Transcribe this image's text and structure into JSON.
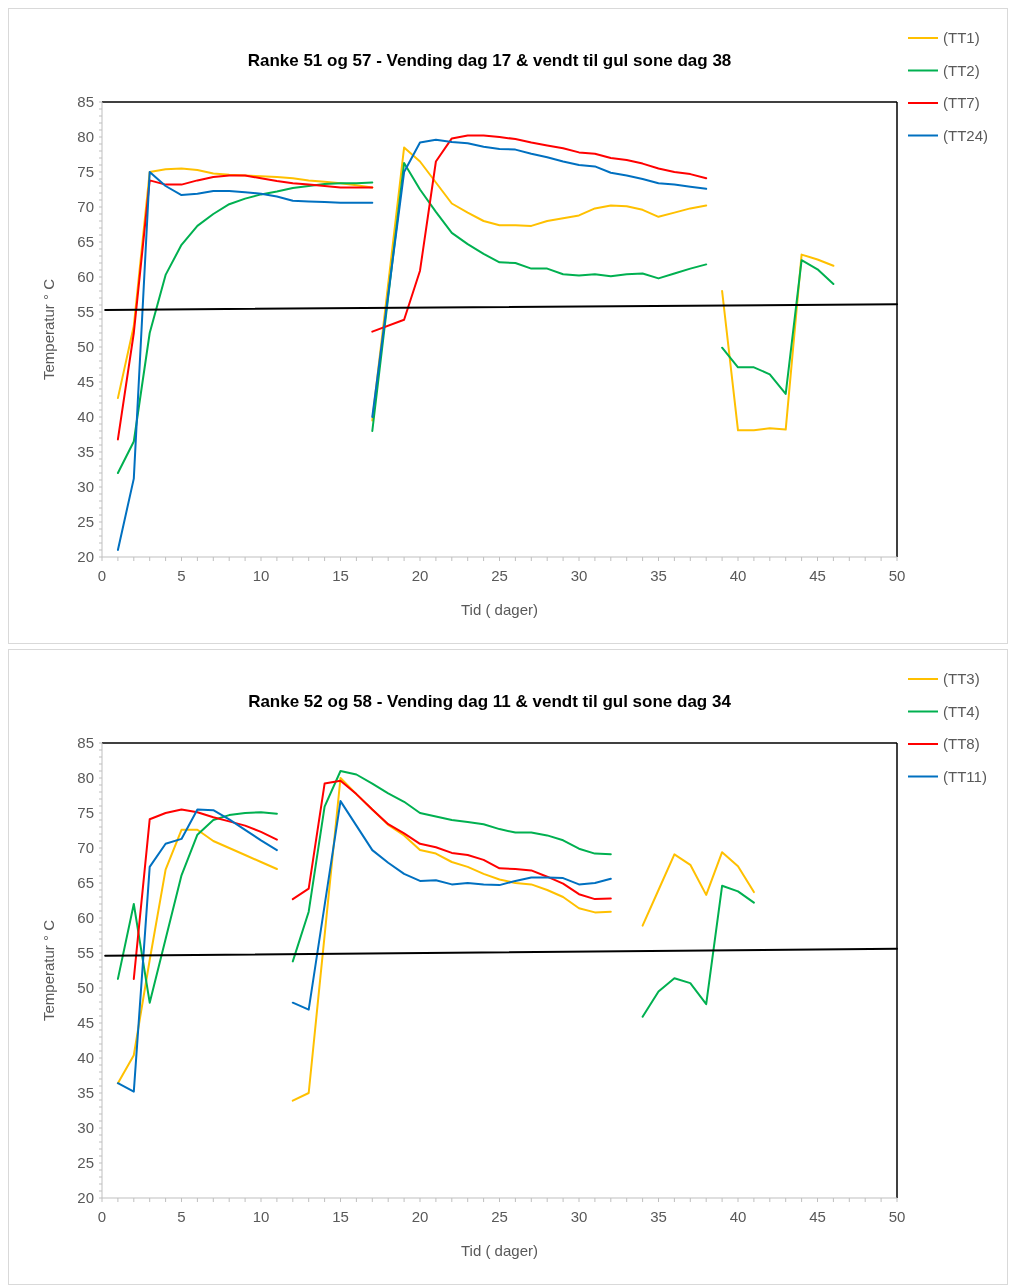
{
  "chart_data": [
    {
      "type": "line",
      "title": "Ranke 51 og 57  - Vending dag 17 & vendt til gul sone dag 38",
      "xlabel": "Tid ( dager)",
      "ylabel": "Temperatur ° C",
      "xlim": [
        0,
        50
      ],
      "xticks": [
        0,
        5,
        10,
        15,
        20,
        25,
        30,
        35,
        40,
        45,
        50
      ],
      "ylim": [
        20,
        85
      ],
      "yticks": [
        20,
        25,
        30,
        35,
        40,
        45,
        50,
        55,
        60,
        65,
        70,
        75,
        80,
        85
      ],
      "legend": "right",
      "series": [
        {
          "name": "(TT1)",
          "color": "#ffc000",
          "x": [
            1,
            2,
            3,
            4,
            5,
            6,
            7,
            8,
            9,
            10,
            11,
            12,
            13,
            14,
            15,
            16,
            17
          ],
          "values": [
            42.7,
            53,
            75,
            75.4,
            75.5,
            75.3,
            74.8,
            74.6,
            74.5,
            74.4,
            74.3,
            74.1,
            73.8,
            73.6,
            73.4,
            73.1,
            72.8
          ]
        },
        {
          "name": "(TT2)",
          "color": "#00b050",
          "x": [
            1,
            2,
            3,
            4,
            5,
            6,
            7,
            8,
            9,
            10,
            11,
            12,
            13,
            14,
            15,
            16,
            17
          ],
          "values": [
            32,
            36.5,
            52,
            60.3,
            64.6,
            67.3,
            69,
            70.4,
            71.2,
            71.8,
            72.2,
            72.7,
            73,
            73.3,
            73.4,
            73.4,
            73.5
          ]
        },
        {
          "name": "(TT7)",
          "color": "#ff0000",
          "x": [
            1,
            2,
            3,
            4,
            5,
            6,
            7,
            8,
            9,
            10,
            11,
            12,
            13,
            14,
            15,
            16,
            17
          ],
          "values": [
            36.8,
            52,
            73.8,
            73.2,
            73.2,
            73.8,
            74.3,
            74.5,
            74.5,
            74.1,
            73.7,
            73.4,
            73.2,
            73,
            72.8,
            72.8,
            72.8
          ]
        },
        {
          "name": "(TT24)",
          "color": "#0070c0",
          "x": [
            1,
            2,
            3,
            4,
            5,
            6,
            7,
            8,
            9,
            10,
            11,
            12,
            13,
            14,
            15,
            16,
            17
          ],
          "values": [
            21,
            31.2,
            75,
            73,
            71.7,
            71.9,
            72.3,
            72.3,
            72.1,
            71.9,
            71.5,
            70.9,
            70.8,
            70.7,
            70.6,
            70.6,
            70.6
          ]
        },
        {
          "color": "#ffc000",
          "x": [
            17,
            19,
            20,
            21,
            22,
            23,
            24,
            25,
            26,
            27,
            28,
            29,
            30,
            31,
            32,
            33,
            34,
            35,
            36,
            37,
            38
          ],
          "values": [
            39.5,
            78.5,
            76.5,
            73.5,
            70.5,
            69.2,
            68,
            67.4,
            67.4,
            67.3,
            68,
            68.4,
            68.8,
            69.8,
            70.2,
            70.1,
            69.6,
            68.6,
            69.2,
            69.8,
            70.2
          ]
        },
        {
          "color": "#00b050",
          "x": [
            17,
            19,
            20,
            21,
            22,
            23,
            24,
            25,
            26,
            27,
            28,
            29,
            30,
            31,
            32,
            33,
            34,
            35,
            36,
            37,
            38
          ],
          "values": [
            38,
            76.3,
            72.5,
            69.3,
            66.3,
            64.7,
            63.3,
            62.1,
            62,
            61.2,
            61.2,
            60.4,
            60.2,
            60.4,
            60.1,
            60.4,
            60.5,
            59.8,
            60.5,
            61.2,
            61.8
          ]
        },
        {
          "color": "#ff0000",
          "x": [
            17,
            19,
            20,
            21,
            22,
            23,
            24,
            25,
            26,
            27,
            28,
            29,
            30,
            31,
            32,
            33,
            34,
            35,
            36,
            37,
            38
          ],
          "values": [
            52.2,
            53.9,
            60.9,
            76.5,
            79.8,
            80.2,
            80.2,
            80,
            79.7,
            79.2,
            78.8,
            78.4,
            77.8,
            77.6,
            77,
            76.7,
            76.2,
            75.5,
            75,
            74.7,
            74.1
          ]
        },
        {
          "color": "#0070c0",
          "x": [
            17,
            19,
            20,
            21,
            22,
            23,
            24,
            25,
            26,
            27,
            28,
            29,
            30,
            31,
            32,
            33,
            34,
            35,
            36,
            37,
            38
          ],
          "values": [
            40,
            75,
            79.2,
            79.6,
            79.3,
            79.1,
            78.6,
            78.3,
            78.2,
            77.6,
            77.1,
            76.5,
            76,
            75.8,
            74.9,
            74.5,
            74,
            73.4,
            73.2,
            72.9,
            72.6
          ]
        },
        {
          "color": "#ffc000",
          "x": [
            39,
            40,
            41,
            42,
            43,
            44,
            45,
            46
          ],
          "values": [
            58,
            38.1,
            38.1,
            38.4,
            38.2,
            63.2,
            62.5,
            61.6
          ]
        },
        {
          "color": "#00b050",
          "x": [
            39,
            40,
            41,
            42,
            43,
            44,
            45,
            46
          ],
          "values": [
            49.9,
            47.1,
            47.1,
            46.1,
            43.3,
            62.4,
            61.1,
            59
          ]
        },
        {
          "color": "#000000",
          "x": [
            0.2,
            50
          ],
          "values": [
            55.3,
            56.1
          ]
        }
      ]
    },
    {
      "type": "line",
      "title": "Ranke 52 og 58 - Vending dag 11 & vendt til gul sone dag 34",
      "xlabel": "Tid ( dager)",
      "ylabel": "Temperatur ° C",
      "xlim": [
        0,
        50
      ],
      "xticks": [
        0,
        5,
        10,
        15,
        20,
        25,
        30,
        35,
        40,
        45,
        50
      ],
      "ylim": [
        20,
        85
      ],
      "yticks": [
        20,
        25,
        30,
        35,
        40,
        45,
        50,
        55,
        60,
        65,
        70,
        75,
        80,
        85
      ],
      "legend": "right",
      "series": [
        {
          "name": "(TT3)",
          "color": "#ffc000",
          "x": [
            1,
            2,
            3,
            4,
            5,
            6,
            7,
            8,
            9,
            10,
            11
          ],
          "values": [
            36.4,
            40.4,
            54,
            66.9,
            72.6,
            72.6,
            71,
            70,
            69,
            68,
            67
          ]
        },
        {
          "name": "(TT4)",
          "color": "#00b050",
          "x": [
            1,
            2,
            3,
            4,
            5,
            6,
            7,
            8,
            9,
            10,
            11
          ],
          "values": [
            51.3,
            62,
            47.9,
            57,
            66.1,
            71.9,
            74,
            74.7,
            75,
            75.1,
            74.9
          ]
        },
        {
          "name": "(TT8)",
          "color": "#ff0000",
          "x": [
            2,
            3,
            4,
            5,
            6,
            7,
            8,
            9,
            10,
            11
          ],
          "values": [
            51.3,
            74.1,
            75,
            75.5,
            75.1,
            74.4,
            73.8,
            73.2,
            72.3,
            71.2
          ]
        },
        {
          "name": "(TT11)",
          "color": "#0070c0",
          "x": [
            1,
            2,
            3,
            4,
            5,
            6,
            7,
            8,
            9,
            10,
            11
          ],
          "values": [
            36.4,
            35.2,
            67.3,
            70.6,
            71.3,
            75.5,
            75.4,
            74.1,
            72.6,
            71.1,
            69.7
          ]
        },
        {
          "color": "#ffc000",
          "x": [
            12,
            13,
            15,
            16,
            17,
            18,
            19,
            20,
            21,
            22,
            23,
            24,
            25,
            26,
            27,
            28,
            29,
            30,
            31,
            32
          ],
          "values": [
            33.9,
            35,
            80,
            77.7,
            75.5,
            73.3,
            71.8,
            69.7,
            69.2,
            68,
            67.3,
            66.3,
            65.5,
            65,
            64.8,
            64,
            63,
            61.4,
            60.8,
            60.9
          ]
        },
        {
          "color": "#00b050",
          "x": [
            12,
            13,
            14,
            15,
            16,
            17,
            18,
            19,
            20,
            21,
            22,
            23,
            24,
            25,
            26,
            27,
            28,
            29,
            30,
            31,
            32
          ],
          "values": [
            53.8,
            60.9,
            75.9,
            81,
            80.5,
            79.2,
            77.8,
            76.6,
            75,
            74.5,
            74,
            73.7,
            73.4,
            72.7,
            72.2,
            72.2,
            71.8,
            71.1,
            69.9,
            69.2,
            69.1
          ]
        },
        {
          "color": "#ff0000",
          "x": [
            12,
            13,
            14,
            15,
            16,
            17,
            18,
            19,
            20,
            21,
            22,
            23,
            24,
            25,
            26,
            27,
            28,
            29,
            30,
            31,
            32
          ],
          "values": [
            62.7,
            64.2,
            79.2,
            79.6,
            77.7,
            75.5,
            73.4,
            72.1,
            70.6,
            70.1,
            69.3,
            69,
            68.3,
            67.1,
            67,
            66.8,
            65.9,
            64.9,
            63.4,
            62.7,
            62.8
          ]
        },
        {
          "color": "#0070c0",
          "x": [
            12,
            13,
            15,
            16,
            17,
            18,
            19,
            20,
            21,
            22,
            23,
            24,
            25,
            26,
            27,
            28,
            29,
            30,
            31,
            32
          ],
          "values": [
            47.9,
            46.9,
            76.7,
            73.2,
            69.7,
            67.9,
            66.3,
            65.3,
            65.4,
            64.8,
            65,
            64.8,
            64.7,
            65.3,
            65.8,
            65.8,
            65.7,
            64.8,
            65,
            65.6
          ]
        },
        {
          "color": "#ffc000",
          "x": [
            34,
            35,
            36,
            37,
            38,
            39,
            40,
            41
          ],
          "values": [
            58.9,
            64,
            69.1,
            67.6,
            63.3,
            69.4,
            67.4,
            63.7
          ]
        },
        {
          "color": "#00b050",
          "x": [
            34,
            35,
            36,
            37,
            38,
            39,
            40,
            41
          ],
          "values": [
            45.9,
            49.5,
            51.4,
            50.7,
            47.7,
            64.6,
            63.8,
            62.2
          ]
        },
        {
          "color": "#000000",
          "x": [
            0.2,
            50
          ],
          "values": [
            54.6,
            55.6
          ]
        }
      ]
    }
  ]
}
